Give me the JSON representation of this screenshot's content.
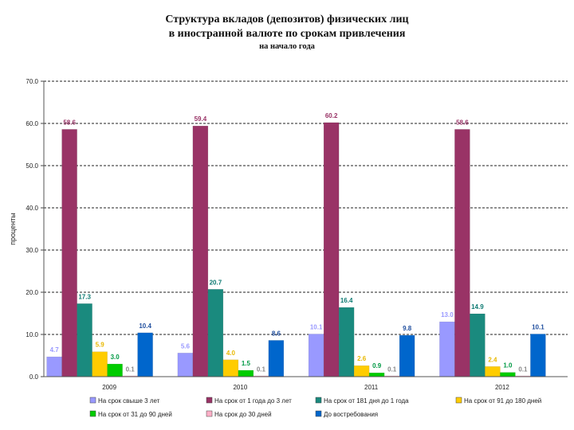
{
  "chart_data": {
    "type": "bar",
    "title": "Структура вкладов (депозитов) физических лиц",
    "title_line2": "в иностранной валюте по срокам привлечения",
    "subtitle": "на начало года",
    "xlabel": "",
    "ylabel": "проценты",
    "ylim": [
      0,
      70
    ],
    "yticks": [
      "0.0",
      "10.0",
      "20.0",
      "30.0",
      "40.0",
      "50.0",
      "60.0",
      "70.0"
    ],
    "gridlines": "dotted",
    "legend_position": "bottom",
    "categories": [
      "2009",
      "2010",
      "2011",
      "2012"
    ],
    "series": [
      {
        "name": "На срок свыше 3 лет",
        "color": "#9999ff",
        "label_color": "#9999ff",
        "values": [
          4.7,
          5.6,
          10.1,
          13.0
        ]
      },
      {
        "name": "На срок от 1 года до 3 лет",
        "color": "#993366",
        "label_color": "#993366",
        "values": [
          58.6,
          59.4,
          60.2,
          58.6
        ]
      },
      {
        "name": "На срок от 181 дня до 1 года",
        "color": "#1a8a7e",
        "label_color": "#0d7a72",
        "values": [
          17.3,
          20.7,
          16.4,
          14.9
        ]
      },
      {
        "name": "На срок от 91 до 180 дней",
        "color": "#ffcc00",
        "label_color": "#e8b800",
        "values": [
          5.9,
          4.0,
          2.6,
          2.4
        ]
      },
      {
        "name": "На срок от 31 до 90 дней",
        "color": "#00cc00",
        "label_color": "#009a44",
        "values": [
          3.0,
          1.5,
          0.9,
          1.0
        ]
      },
      {
        "name": "На срок до 30 дней",
        "color": "#ffb0c8",
        "label_color": "#888888",
        "values": [
          0.1,
          0.1,
          0.1,
          0.1
        ]
      },
      {
        "name": "До востребования",
        "color": "#0066cc",
        "label_color": "#1f4e9e",
        "values": [
          10.4,
          8.6,
          9.8,
          10.1
        ]
      }
    ]
  }
}
